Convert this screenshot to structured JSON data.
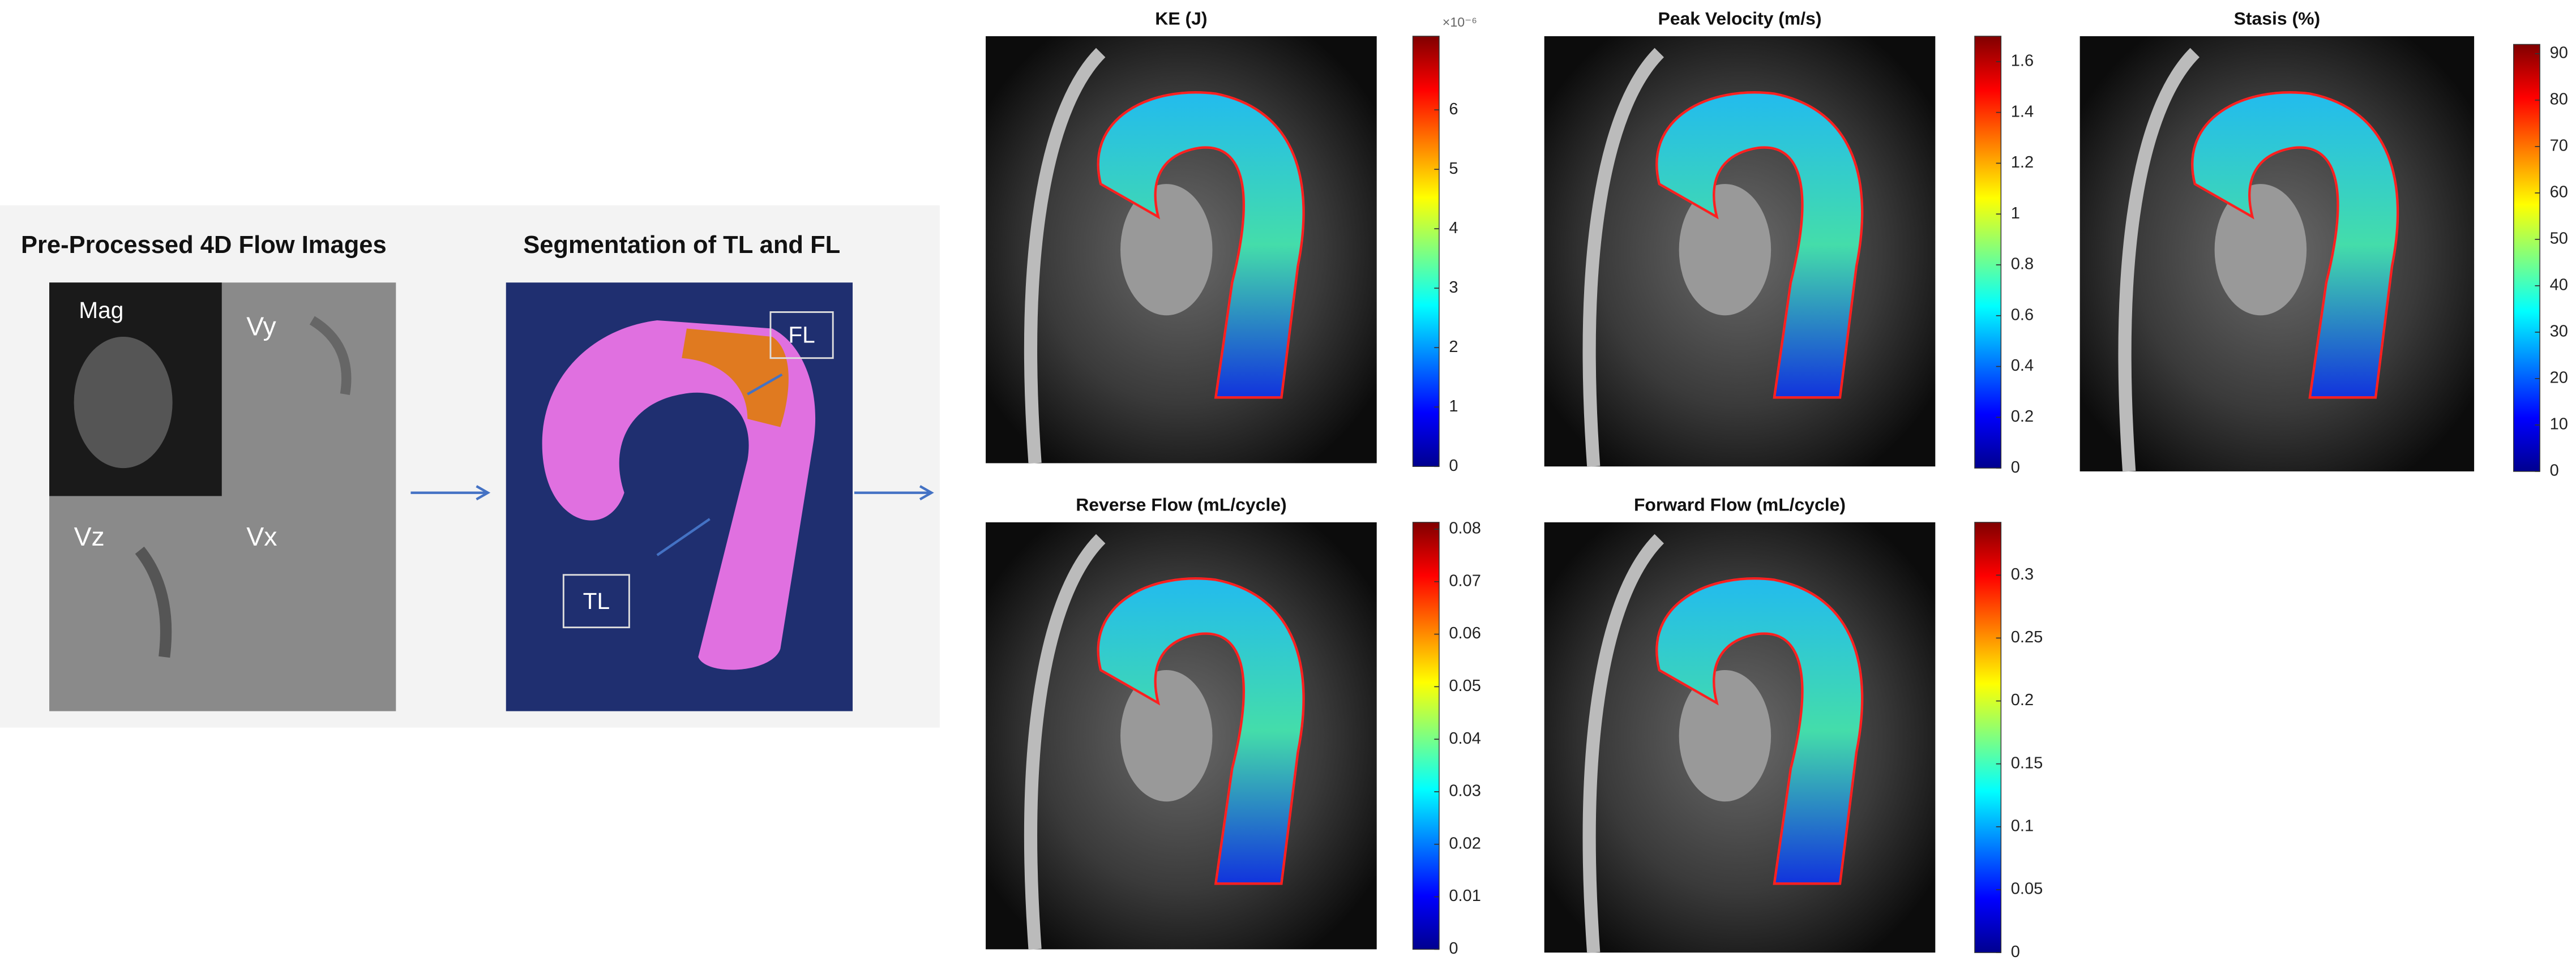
{
  "left_panel": {
    "title": "Pre-Processed 4D Flow Images",
    "labels": [
      "Mag",
      "Vy",
      "Vz",
      "Vx"
    ]
  },
  "segmentation": {
    "title": "Segmentation of TL and FL",
    "labels": [
      "FL",
      "TL"
    ]
  },
  "maps": [
    {
      "title": "KE (J)",
      "scale_label": "×10⁻⁶",
      "ylim": [
        0,
        7.24
      ],
      "yticks": [
        0,
        1,
        2,
        3,
        4,
        5,
        6
      ]
    },
    {
      "title": "Peak Velocity (m/s)",
      "ylim": [
        0,
        1.7
      ],
      "yticks": [
        0,
        0.2,
        0.4,
        0.6,
        0.8,
        1,
        1.2,
        1.4,
        1.6
      ]
    },
    {
      "title": "Stasis (%)",
      "ylim": [
        0,
        92
      ],
      "yticks": [
        0,
        10,
        20,
        30,
        40,
        50,
        60,
        70,
        80,
        90
      ]
    },
    {
      "title": "Reverse Flow (mL/cycle)",
      "ylim": [
        0,
        0.0813
      ],
      "yticks": [
        0,
        0.01,
        0.02,
        0.03,
        0.04,
        0.05,
        0.06,
        0.07,
        0.08
      ]
    },
    {
      "title": "Forward Flow (mL/cycle)",
      "ylim": [
        0,
        0.342
      ],
      "yticks": [
        0,
        0.05,
        0.1,
        0.15,
        0.2,
        0.25,
        0.3
      ]
    }
  ]
}
